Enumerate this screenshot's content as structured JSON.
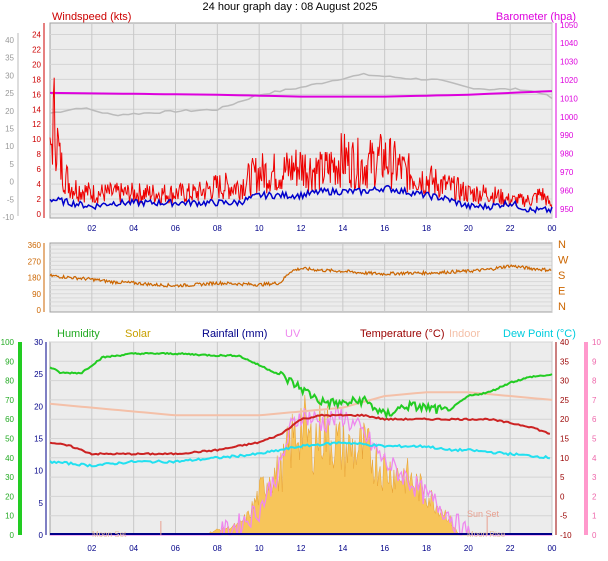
{
  "page_title": "24 hour graph day : 08 August 2025",
  "colors": {
    "wind": "#ee0000",
    "gust_base": "#cc0000",
    "wind_avg": "#0000cc",
    "barometer": "#dd00dd",
    "baro_prev": "#bbbbbb",
    "direction": "#cc6600",
    "humidity": "#22cc22",
    "solar": "#f7c55a",
    "rainfall": "#000088",
    "uv": "#ee88ee",
    "temperature": "#cc2222",
    "indoor": "#f4c0a8",
    "dew_point": "#22e0f0",
    "moon": "#e8c4a4",
    "sun": "#e8a090"
  },
  "chart_data": [
    {
      "type": "line",
      "id": "wind_pressure",
      "title": "24 hour graph day : 08 August 2025",
      "left_axis": {
        "label": "Windspeed (kts)",
        "ticks_inner": [
          24,
          22,
          20,
          18,
          16,
          14,
          12,
          10,
          8,
          6,
          4,
          2,
          0
        ],
        "ticks_outer": [
          40,
          35,
          30,
          25,
          20,
          15,
          10,
          5,
          0,
          -5,
          -10
        ]
      },
      "right_axis": {
        "label": "Barometer (hpa)",
        "ticks": [
          1050,
          1040,
          1030,
          1020,
          1010,
          1000,
          990,
          980,
          970,
          960,
          950
        ]
      },
      "x_ticks": [
        "02",
        "04",
        "06",
        "08",
        "10",
        "12",
        "14",
        "16",
        "18",
        "20",
        "22",
        "00"
      ],
      "ylim": [
        0,
        25
      ],
      "ylim_right": [
        945,
        1051
      ],
      "series": [
        {
          "key": "wind_gust",
          "x": [
            0.0,
            0.2,
            0.5,
            1.0,
            2.0,
            3.0,
            4.0,
            5.0,
            6.0,
            7.0,
            8.0,
            9.0,
            10.0,
            11.0,
            12.0,
            13.0,
            14.0,
            15.0,
            16.0,
            17.0,
            18.0,
            19.0,
            20.0,
            21.0,
            22.0,
            23.0,
            23.5,
            24.0
          ],
          "y": [
            8,
            14,
            7,
            4,
            3,
            3,
            3,
            3,
            3,
            3,
            4,
            4,
            6,
            6,
            7,
            6,
            8,
            7,
            8,
            6,
            5,
            4,
            3,
            3,
            2,
            2,
            3,
            1
          ]
        },
        {
          "key": "wind_avg",
          "x": [
            0.0,
            1.0,
            2.0,
            3.0,
            4.0,
            5.0,
            6.0,
            7.0,
            8.0,
            9.0,
            10.0,
            11.0,
            12.0,
            13.0,
            14.0,
            15.0,
            16.0,
            17.0,
            18.0,
            19.0,
            20.0,
            21.0,
            22.0,
            23.0,
            24.0
          ],
          "y": [
            2,
            1.5,
            1,
            1.5,
            1.5,
            1.5,
            1.5,
            1.5,
            1.5,
            1.5,
            2.5,
            2.5,
            2.5,
            3,
            3,
            3,
            3.5,
            3,
            2.5,
            2,
            1,
            1,
            1.5,
            0.5,
            0.5
          ]
        },
        {
          "key": "barometer",
          "axis": "right",
          "x": [
            0.0,
            4.0,
            8.0,
            12.0,
            16.0,
            20.0,
            24.0
          ],
          "y": [
            1013,
            1012.5,
            1012,
            1011,
            1011,
            1012,
            1014
          ]
        },
        {
          "key": "barometer_prev",
          "axis": "right",
          "x": [
            0.0,
            1.5,
            3.0,
            6.0,
            8.0,
            10.0,
            12.0,
            14.0,
            15.0,
            17.0,
            18.5,
            20.0,
            21.0,
            22.5,
            23.5,
            24.0
          ],
          "y": [
            1002,
            1005,
            1001,
            1003,
            1004,
            1012,
            1016,
            1021,
            1023,
            1021,
            1020,
            1016,
            1015,
            1015,
            1013,
            1010
          ]
        }
      ]
    },
    {
      "type": "line",
      "id": "wind_direction",
      "y_ticks": [
        360,
        270,
        180,
        90,
        0
      ],
      "compass": [
        "N",
        "W",
        "S",
        "E",
        "N"
      ],
      "ylim": [
        0,
        360
      ],
      "series": [
        {
          "key": "direction",
          "x": [
            0.0,
            1.0,
            2.0,
            3.0,
            4.0,
            5.0,
            6.0,
            7.0,
            8.0,
            9.0,
            10.0,
            11.0,
            11.5,
            12.0,
            13.0,
            14.0,
            15.0,
            16.0,
            17.0,
            18.0,
            19.0,
            20.0,
            21.0,
            22.0,
            23.0,
            24.0
          ],
          "y": [
            190,
            180,
            170,
            155,
            150,
            140,
            135,
            140,
            150,
            145,
            140,
            150,
            215,
            230,
            220,
            215,
            205,
            200,
            205,
            205,
            210,
            215,
            225,
            245,
            230,
            220
          ]
        }
      ]
    },
    {
      "type": "area",
      "id": "solar_temperature",
      "labels": {
        "humidity": "Humidity",
        "solar": "Solar",
        "rainfall": "Rainfall (mm)",
        "uv": "UV",
        "temperature": "Temperature (°C)",
        "indoor": "Indoor",
        "dew_point": "Dew Point (°C)"
      },
      "annotations": {
        "moon_set": "Moon Set",
        "sun_set": "Sun Set",
        "moon_rise": "Moon Rise"
      },
      "axis_humidity_ticks": [
        100,
        90,
        80,
        70,
        60,
        50,
        40,
        30,
        20,
        10,
        0
      ],
      "axis_rain_ticks": [
        30,
        25,
        20,
        15,
        10,
        5,
        0
      ],
      "axis_temp_ticks": [
        40,
        35,
        30,
        25,
        20,
        15,
        10,
        5,
        0,
        -5,
        -10
      ],
      "axis_uv_ticks": [
        10,
        9,
        8,
        7,
        6,
        5,
        4,
        3,
        2,
        1,
        0
      ],
      "x_ticks": [
        "02",
        "04",
        "06",
        "08",
        "10",
        "12",
        "14",
        "16",
        "18",
        "20",
        "22",
        "00"
      ],
      "ylim_humidity": [
        0,
        100
      ],
      "ylim_temp": [
        -10,
        40
      ],
      "series": [
        {
          "key": "humidity",
          "x": [
            0.0,
            0.5,
            1.5,
            2.5,
            4.0,
            6.0,
            8.0,
            9.0,
            10.0,
            11.0,
            12.0,
            13.0,
            14.0,
            15.0,
            16.0,
            17.0,
            18.0,
            19.0,
            20.0,
            21.0,
            22.0,
            23.0,
            24.0
          ],
          "y": [
            87,
            84,
            84,
            92,
            94,
            94,
            93,
            93,
            88,
            83,
            76,
            69,
            68,
            70,
            62,
            67,
            66,
            64,
            72,
            74,
            79,
            82,
            83
          ]
        },
        {
          "key": "temperature",
          "x": [
            0.0,
            1.0,
            2.0,
            4.0,
            6.0,
            8.0,
            10.0,
            11.0,
            12.0,
            13.0,
            14.0,
            15.0,
            16.0,
            17.0,
            18.0,
            19.0,
            20.0,
            21.0,
            22.0,
            23.0,
            24.0
          ],
          "y": [
            14,
            13,
            11,
            11,
            11,
            12,
            14,
            16,
            20,
            21,
            21,
            21,
            20,
            20,
            20,
            20,
            20,
            20,
            19,
            18,
            16
          ]
        },
        {
          "key": "dew_point",
          "x": [
            0.0,
            2.0,
            4.0,
            6.0,
            8.0,
            10.0,
            12.0,
            14.0,
            16.0,
            18.0,
            19.0,
            20.0,
            22.0,
            24.0
          ],
          "y": [
            9,
            8,
            9,
            9,
            10,
            11,
            13,
            14,
            13,
            13,
            12,
            12,
            11,
            10
          ]
        },
        {
          "key": "indoor",
          "x": [
            0.0,
            2.0,
            4.0,
            6.0,
            8.0,
            10.0,
            12.0,
            14.0,
            16.0,
            18.0,
            19.0,
            20.0,
            22.0,
            24.0
          ],
          "y": [
            24,
            23,
            22,
            21,
            21,
            21,
            22,
            23,
            26,
            27,
            27,
            27,
            26,
            25
          ]
        },
        {
          "key": "solar",
          "x": [
            0.0,
            7.0,
            7.5,
            8.0,
            9.0,
            9.5,
            10.0,
            10.5,
            11.0,
            11.5,
            12.0,
            12.5,
            13.0,
            14.0,
            15.0,
            16.0,
            17.0,
            18.0,
            19.0,
            19.5,
            24.0
          ],
          "y": [
            0,
            0,
            1,
            3,
            6,
            12,
            25,
            37,
            37,
            55,
            68,
            55,
            65,
            52,
            52,
            40,
            36,
            25,
            12,
            1,
            0
          ]
        },
        {
          "key": "uv",
          "x": [
            0.0,
            7.0,
            8.0,
            9.0,
            10.0,
            11.0,
            11.5,
            12.0,
            13.0,
            14.0,
            15.0,
            16.0,
            17.0,
            18.0,
            19.0,
            19.5,
            20.0,
            24.0
          ],
          "y": [
            0,
            0,
            0,
            0.5,
            1.3,
            3.5,
            5.5,
            6.3,
            5.8,
            6.2,
            5.2,
            3.8,
            3.0,
            2.0,
            1.2,
            0.5,
            0,
            0
          ]
        }
      ]
    }
  ]
}
